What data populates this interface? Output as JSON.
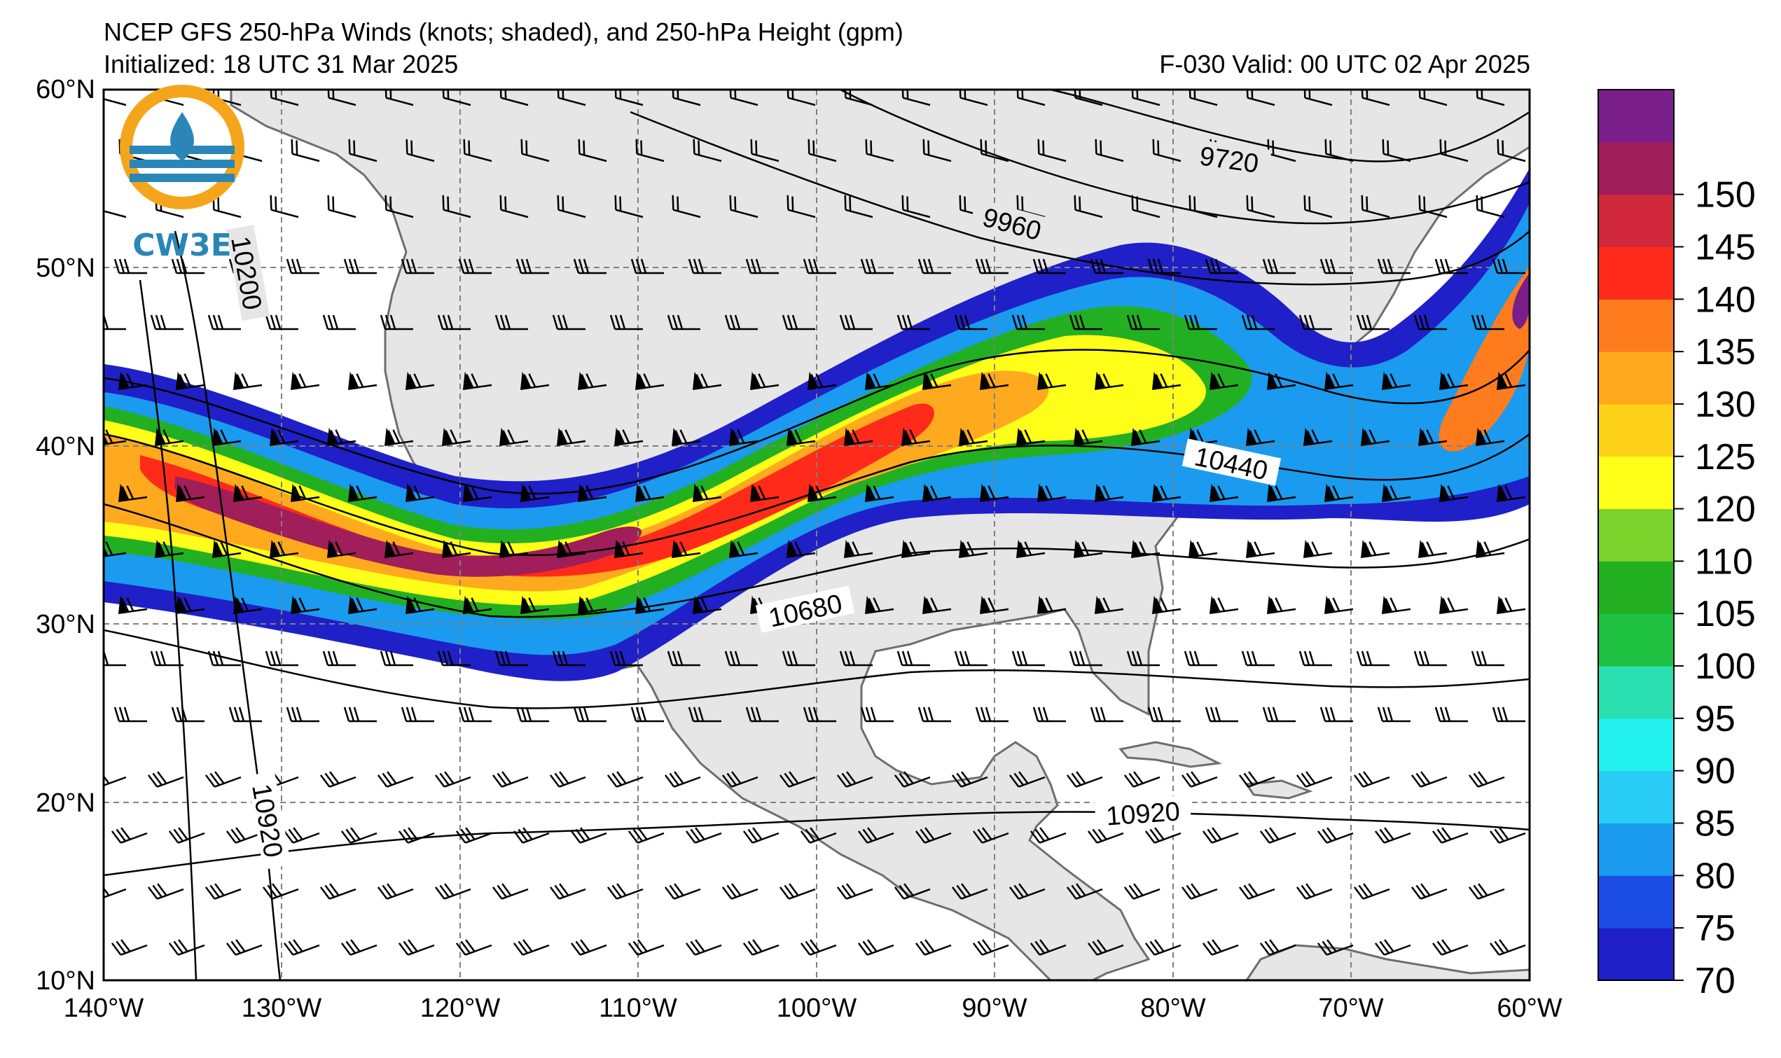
{
  "header": {
    "title": "NCEP GFS 250-hPa Winds (knots; shaded), and 250-hPa Height (gpm)",
    "initialized": "Initialized: 18 UTC 31 Mar 2025",
    "valid": "F-030  Valid: 00 UTC 02 Apr 2025"
  },
  "logo": {
    "text": "CW3E"
  },
  "map": {
    "lon_range": [
      -140,
      -60
    ],
    "lat_range": [
      10,
      60
    ],
    "lon_labels": [
      "140°W",
      "130°W",
      "120°W",
      "110°W",
      "100°W",
      "90°W",
      "80°W",
      "70°W",
      "60°W"
    ],
    "lat_labels": [
      "60°N",
      "50°N",
      "40°N",
      "30°N",
      "20°N",
      "10°N"
    ],
    "land_color": "#e6e6e6",
    "coast_color": "#6e6e6e",
    "grid": "dashed"
  },
  "contours": {
    "labels": [
      "9720",
      "9960",
      "10200",
      "10440",
      "10680",
      "10920",
      "10920"
    ]
  },
  "colorbar": {
    "ticks": [
      "70",
      "75",
      "80",
      "85",
      "90",
      "95",
      "100",
      "105",
      "110",
      "120",
      "125",
      "130",
      "135",
      "140",
      "145",
      "150"
    ],
    "colors": [
      "#2020c8",
      "#1c4ee6",
      "#1a9bef",
      "#28ccf4",
      "#22f0ee",
      "#2ae0b0",
      "#1ec040",
      "#22b022",
      "#7ad22a",
      "#ffff1a",
      "#ffd21a",
      "#ffaa1e",
      "#ff7c1e",
      "#ff2a1a",
      "#d2283c",
      "#a01e5a",
      "#7a1e8a"
    ]
  }
}
